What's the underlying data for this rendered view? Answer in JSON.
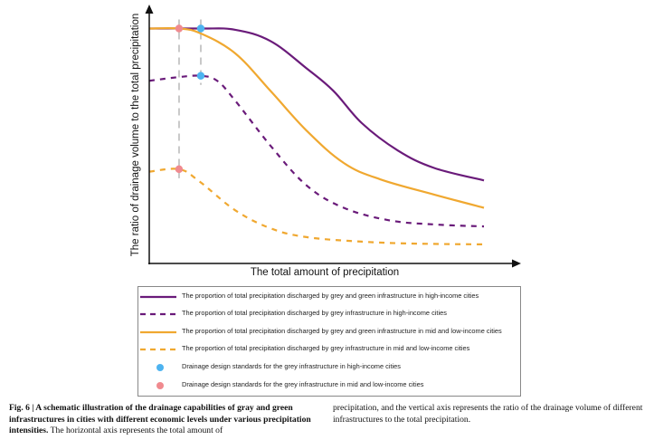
{
  "chart_data": {
    "type": "line",
    "title": "",
    "xlabel": "The total amount of precipitation",
    "ylabel": "The ratio of drainage volume to the total precipitation",
    "xlim": [
      0,
      10
    ],
    "ylim": [
      0,
      1
    ],
    "grid": false,
    "ticks": "none (schematic axes with arrowheads)",
    "legend_position": "bottom (below plot, boxed)",
    "series": [
      {
        "name": "The proportion of total precipitation discharged by grey and green infrastructure in high-income cities",
        "color": "#6a1b7a",
        "style": "solid",
        "x": [
          0,
          1.54,
          2.57,
          3.62,
          4.7,
          5.5,
          6.35,
          7.43,
          8.51,
          10
        ],
        "y": [
          0.94,
          0.94,
          0.935,
          0.89,
          0.78,
          0.69,
          0.56,
          0.45,
          0.38,
          0.33
        ]
      },
      {
        "name": "The proportion of total precipitation discharged by grey infrastructure in high-income cities",
        "color": "#6a1b7a",
        "style": "dashed",
        "x": [
          0,
          0.89,
          1.54,
          2.03,
          2.57,
          3.62,
          4.7,
          5.81,
          7.16,
          8.51,
          10
        ],
        "y": [
          0.73,
          0.745,
          0.75,
          0.73,
          0.65,
          0.47,
          0.31,
          0.22,
          0.17,
          0.153,
          0.145
        ]
      },
      {
        "name": "The proportion of total precipitation discharged by grey and green infrastructure in mid and low-income cities",
        "color": "#f0a830",
        "style": "solid",
        "x": [
          0,
          0.89,
          1.54,
          2.57,
          3.62,
          4.7,
          5.81,
          6.89,
          8.51,
          10
        ],
        "y": [
          0.94,
          0.94,
          0.92,
          0.84,
          0.69,
          0.53,
          0.4,
          0.335,
          0.273,
          0.22
        ]
      },
      {
        "name": "The proportion of total precipitation discharged by grey infrastructure in mid and low-income cities",
        "color": "#f0a830",
        "style": "dashed",
        "x": [
          0,
          0.89,
          1.49,
          2.57,
          3.62,
          4.7,
          6.35,
          7.97,
          10
        ],
        "y": [
          0.365,
          0.375,
          0.327,
          0.21,
          0.138,
          0.102,
          0.084,
          0.076,
          0.073
        ]
      }
    ],
    "markers": [
      {
        "name": "Drainage design standards for the grey infrastructure in high-income cities",
        "color": "#4db3f0",
        "points": [
          {
            "x": 1.54,
            "y": 0.94
          },
          {
            "x": 1.54,
            "y": 0.75
          }
        ]
      },
      {
        "name": "Drainage design standards for the grey infrastructure in mid and low-income cities",
        "color": "#f08a8f",
        "points": [
          {
            "x": 0.89,
            "y": 0.94
          },
          {
            "x": 0.89,
            "y": 0.375
          }
        ]
      }
    ],
    "reference_lines": [
      {
        "type": "vertical-dashed",
        "color": "#c8c8c8",
        "x": 1.54
      },
      {
        "type": "vertical-dashed",
        "color": "#c8c8c8",
        "x": 0.89
      }
    ]
  },
  "legend": {
    "items": [
      {
        "label": "The proportion of total precipitation discharged by grey and green infrastructure in high-income cities",
        "color": "#6a1b7a",
        "symbol": "solid-line"
      },
      {
        "label": "The proportion of total precipitation discharged by grey infrastructure in high-income cities",
        "color": "#6a1b7a",
        "symbol": "dashed-line"
      },
      {
        "label": "The proportion of total precipitation discharged by grey and green infrastructure in mid and low-income cities",
        "color": "#f0a830",
        "symbol": "solid-line"
      },
      {
        "label": "The proportion of total precipitation discharged by grey infrastructure in mid and low-income cities",
        "color": "#f0a830",
        "symbol": "dashed-line"
      },
      {
        "label": "Drainage design standards for the grey infrastructure in high-income cities",
        "color": "#4db3f0",
        "symbol": "dot"
      },
      {
        "label": "Drainage design standards for the grey infrastructure in mid and low-income cities",
        "color": "#f08a8f",
        "symbol": "dot"
      }
    ]
  },
  "caption": {
    "label": "Fig. 6 | A schematic illustration of the drainage capabilities of gray and green infrastructures in cities with different economic levels under various precipitation intensities.",
    "left_body": " The horizontal axis represents the total amount of",
    "right_body": "precipitation, and the vertical axis represents the ratio of the drainage volume of different infrastructures to the total precipitation."
  }
}
